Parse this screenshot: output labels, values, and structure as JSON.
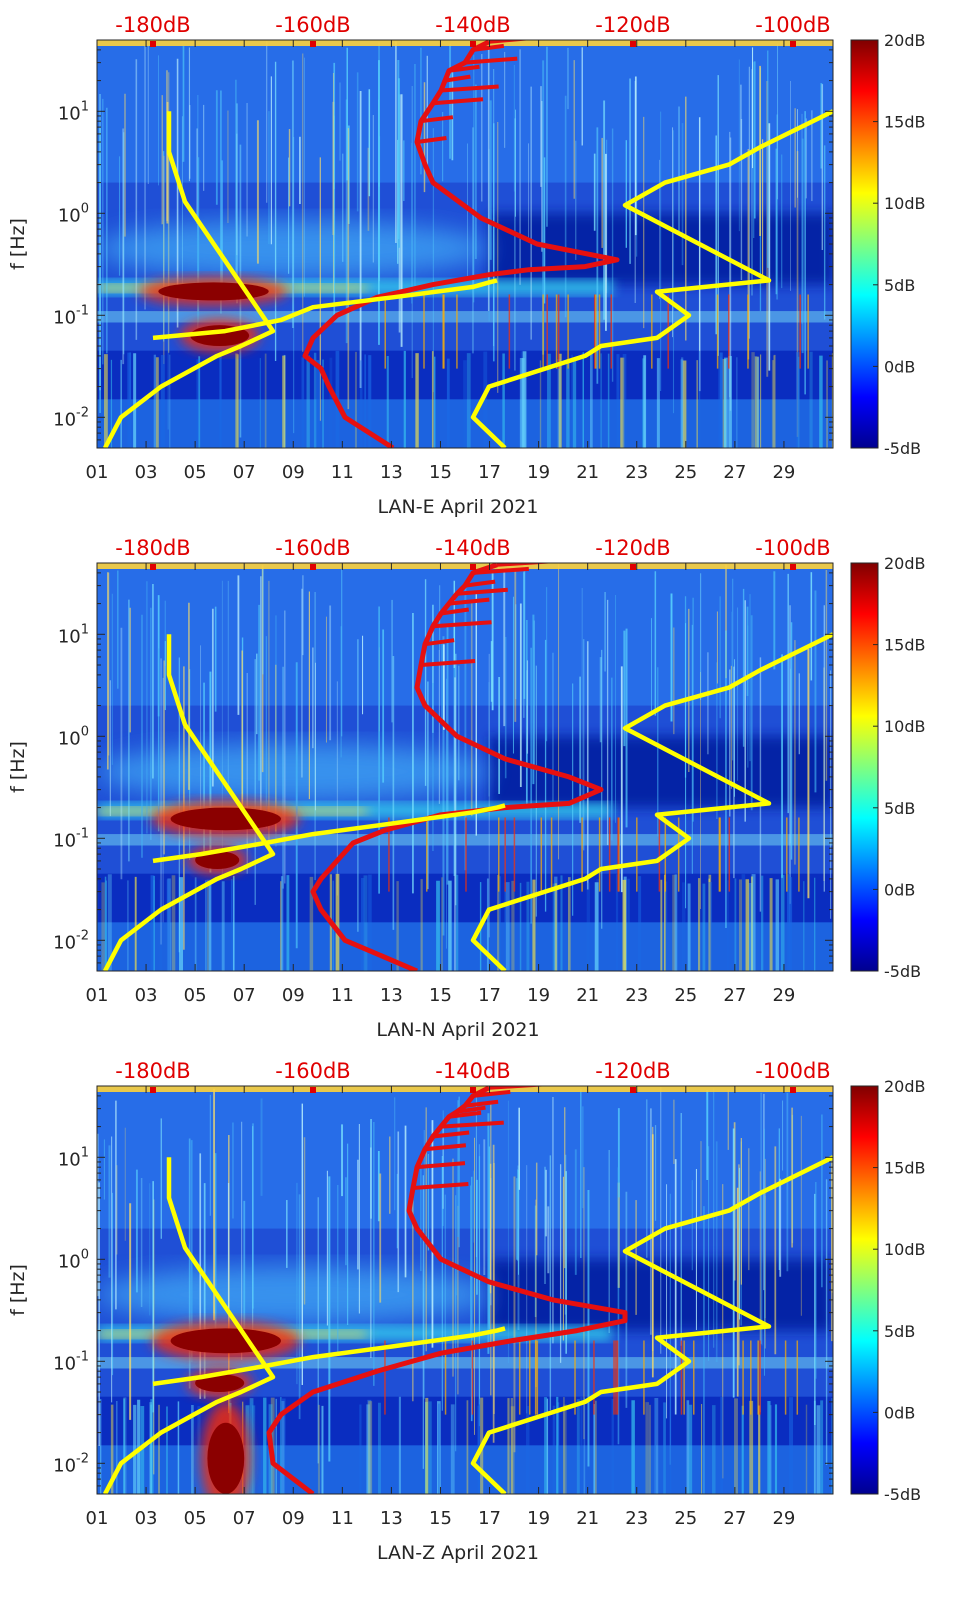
{
  "colors": {
    "spectro_base": "#1f4fd6",
    "spectro_low": "#001a9e",
    "hot": "#8b0000",
    "yellow_curve": "#ffff00",
    "red_curve": "#e61010",
    "top_label": "#e00000"
  },
  "chart_data": [
    {
      "type": "heatmap",
      "title": "",
      "xlabel": "LAN-E April 2021",
      "ylabel": "f [Hz]",
      "x_ticks": [
        "01",
        "03",
        "05",
        "07",
        "09",
        "11",
        "13",
        "15",
        "17",
        "19",
        "21",
        "23",
        "25",
        "27",
        "29"
      ],
      "x_range": [
        1,
        31
      ],
      "y_scale": "log",
      "y_range": [
        0.005,
        50
      ],
      "y_ticks": [
        {
          "value": 10,
          "label": "10^1"
        },
        {
          "value": 1,
          "label": "10^0"
        },
        {
          "value": 0.1,
          "label": "10^-1"
        },
        {
          "value": 0.01,
          "label": "10^-2"
        }
      ],
      "top_axis": {
        "labels": [
          "-180dB",
          "-160dB",
          "-140dB",
          "-120dB",
          "-100dB"
        ],
        "values": [
          -180,
          -160,
          -140,
          -120,
          -100
        ],
        "range": [
          -187,
          -95
        ]
      },
      "colorbar": {
        "labels": [
          "20dB",
          "15dB",
          "10dB",
          "5dB",
          "0dB",
          "-5dB"
        ],
        "range": [
          -5,
          20
        ]
      },
      "hot_spots": [
        {
          "x": [
            3.5,
            8.0
          ],
          "f": [
            0.14,
            0.21
          ]
        },
        {
          "x": [
            4.8,
            7.2
          ],
          "f": [
            0.05,
            0.08
          ]
        }
      ],
      "series": [
        {
          "name": "yellow-low-noise-model",
          "x_db": [
            -186.0,
            -184,
            -179,
            -172,
            -169,
            -165,
            -176,
            -178,
            -178
          ],
          "f": [
            0.005,
            0.01,
            0.02,
            0.04,
            0.05,
            0.07,
            1.3,
            4.0,
            10
          ]
        },
        {
          "name": "yellow-high-noise-model",
          "x_db": [
            -136.0,
            -140,
            -138,
            -126,
            -124,
            -117,
            -113,
            -117,
            -103,
            -121,
            -116,
            -108,
            -104,
            -95
          ],
          "f": [
            0.005,
            0.01,
            0.02,
            0.04,
            0.05,
            0.06,
            0.1,
            0.17,
            0.22,
            1.2,
            2.0,
            3.0,
            4.5,
            10
          ]
        },
        {
          "name": "red-psd-curve",
          "x_db": [
            -150,
            -156,
            -158,
            -159,
            -161,
            -160,
            -157,
            -152,
            -145,
            -138,
            -133,
            -126,
            -122,
            -132,
            -139,
            -145,
            -146,
            -147,
            -146.5,
            -145,
            -144,
            -143.5,
            -143,
            -141,
            -140,
            -138
          ],
          "f": [
            0.005,
            0.01,
            0.02,
            0.03,
            0.04,
            0.06,
            0.1,
            0.15,
            0.2,
            0.25,
            0.28,
            0.3,
            0.35,
            0.5,
            0.9,
            2.0,
            3.0,
            5.0,
            8.0,
            12.0,
            16.0,
            20.0,
            25.0,
            30.0,
            40.0,
            48.0
          ]
        },
        {
          "name": "yellow-mid-curve",
          "x_db": [
            -180.0,
            -171,
            -164,
            -160,
            -150,
            -140,
            -138,
            -137
          ],
          "f": [
            0.06,
            0.07,
            0.09,
            0.12,
            0.15,
            0.19,
            0.21,
            0.22
          ]
        }
      ]
    },
    {
      "type": "heatmap",
      "title": "",
      "xlabel": "LAN-N April 2021",
      "ylabel": "f [Hz]",
      "x_ticks": [
        "01",
        "03",
        "05",
        "07",
        "09",
        "11",
        "13",
        "15",
        "17",
        "19",
        "21",
        "23",
        "25",
        "27",
        "29"
      ],
      "x_range": [
        1,
        31
      ],
      "y_scale": "log",
      "y_range": [
        0.005,
        50
      ],
      "y_ticks": [
        {
          "value": 10,
          "label": "10^1"
        },
        {
          "value": 1,
          "label": "10^0"
        },
        {
          "value": 0.1,
          "label": "10^-1"
        },
        {
          "value": 0.01,
          "label": "10^-2"
        }
      ],
      "top_axis": {
        "labels": [
          "-180dB",
          "-160dB",
          "-140dB",
          "-120dB",
          "-100dB"
        ],
        "values": [
          -180,
          -160,
          -140,
          -120,
          -100
        ],
        "range": [
          -187,
          -95
        ]
      },
      "colorbar": {
        "labels": [
          "20dB",
          "15dB",
          "10dB",
          "5dB",
          "0dB",
          "-5dB"
        ],
        "range": [
          -5,
          20
        ]
      },
      "hot_spots": [
        {
          "x": [
            4.0,
            8.5
          ],
          "f": [
            0.12,
            0.2
          ]
        },
        {
          "x": [
            5.0,
            6.8
          ],
          "f": [
            0.05,
            0.075
          ]
        }
      ],
      "series": [
        {
          "name": "yellow-low-noise-model",
          "x_db": [
            -186.0,
            -184,
            -179,
            -172,
            -169,
            -165,
            -176,
            -178,
            -178
          ],
          "f": [
            0.005,
            0.01,
            0.02,
            0.04,
            0.05,
            0.07,
            1.3,
            4.0,
            10
          ]
        },
        {
          "name": "yellow-high-noise-model",
          "x_db": [
            -136.0,
            -140,
            -138,
            -126,
            -124,
            -117,
            -113,
            -117,
            -103,
            -121,
            -116,
            -108,
            -104,
            -95
          ],
          "f": [
            0.005,
            0.01,
            0.02,
            0.04,
            0.05,
            0.06,
            0.1,
            0.17,
            0.22,
            1.2,
            2.0,
            3.0,
            4.5,
            10
          ]
        },
        {
          "name": "red-psd-curve",
          "x_db": [
            -147,
            -156,
            -159,
            -160,
            -159,
            -157,
            -155,
            -151,
            -144,
            -136,
            -128,
            -124,
            -128,
            -136,
            -142,
            -146,
            -147,
            -146.5,
            -146,
            -145,
            -144,
            -143,
            -142,
            -141,
            -140,
            -137
          ],
          "f": [
            0.005,
            0.01,
            0.02,
            0.03,
            0.04,
            0.06,
            0.09,
            0.12,
            0.17,
            0.2,
            0.22,
            0.3,
            0.4,
            0.6,
            1.0,
            2.0,
            3.0,
            5.0,
            8.0,
            12.0,
            16.0,
            20.0,
            25.0,
            30.0,
            40.0,
            48.0
          ]
        },
        {
          "name": "yellow-mid-curve",
          "x_db": [
            -180.0,
            -174,
            -166,
            -160,
            -150,
            -140,
            -137,
            -136
          ],
          "f": [
            0.06,
            0.07,
            0.09,
            0.11,
            0.14,
            0.18,
            0.2,
            0.21
          ]
        }
      ]
    },
    {
      "type": "heatmap",
      "title": "",
      "xlabel": "LAN-Z April 2021",
      "ylabel": "f [Hz]",
      "x_ticks": [
        "01",
        "03",
        "05",
        "07",
        "09",
        "11",
        "13",
        "15",
        "17",
        "19",
        "21",
        "23",
        "25",
        "27",
        "29"
      ],
      "x_range": [
        1,
        31
      ],
      "y_scale": "log",
      "y_range": [
        0.005,
        50
      ],
      "y_ticks": [
        {
          "value": 10,
          "label": "10^1"
        },
        {
          "value": 1,
          "label": "10^0"
        },
        {
          "value": 0.1,
          "label": "10^-1"
        },
        {
          "value": 0.01,
          "label": "10^-2"
        }
      ],
      "top_axis": {
        "labels": [
          "-180dB",
          "-160dB",
          "-140dB",
          "-120dB",
          "-100dB"
        ],
        "values": [
          -180,
          -160,
          -140,
          -120,
          -100
        ],
        "range": [
          -187,
          -95
        ]
      },
      "colorbar": {
        "labels": [
          "20dB",
          "15dB",
          "10dB",
          "5dB",
          "0dB",
          "-5dB"
        ],
        "range": [
          -5,
          20
        ]
      },
      "hot_spots": [
        {
          "x": [
            4.0,
            8.5
          ],
          "f": [
            0.12,
            0.21
          ]
        },
        {
          "x": [
            5.0,
            7.0
          ],
          "f": [
            0.05,
            0.075
          ]
        },
        {
          "x": [
            5.5,
            7.0
          ],
          "f": [
            0.005,
            0.025
          ]
        }
      ],
      "series": [
        {
          "name": "yellow-low-noise-model",
          "x_db": [
            -186.0,
            -184,
            -179,
            -172,
            -169,
            -165,
            -176,
            -178,
            -178
          ],
          "f": [
            0.005,
            0.01,
            0.02,
            0.04,
            0.05,
            0.07,
            1.3,
            4.0,
            10
          ]
        },
        {
          "name": "yellow-high-noise-model",
          "x_db": [
            -136.0,
            -140,
            -138,
            -126,
            -124,
            -117,
            -113,
            -117,
            -103,
            -121,
            -116,
            -108,
            -104,
            -95
          ],
          "f": [
            0.005,
            0.01,
            0.02,
            0.04,
            0.05,
            0.06,
            0.1,
            0.17,
            0.22,
            1.2,
            2.0,
            3.0,
            4.5,
            10
          ]
        },
        {
          "name": "red-psd-curve",
          "x_db": [
            -160,
            -165,
            -165.5,
            -164,
            -160,
            -152,
            -144,
            -135,
            -127,
            -121,
            -121,
            -130,
            -138,
            -144,
            -147,
            -148,
            -147.5,
            -147,
            -146,
            -145,
            -144,
            -143,
            -142,
            -141,
            -140,
            -138
          ],
          "f": [
            0.005,
            0.01,
            0.02,
            0.03,
            0.05,
            0.08,
            0.12,
            0.16,
            0.2,
            0.25,
            0.3,
            0.4,
            0.6,
            1.0,
            2.0,
            3.0,
            5.0,
            8.0,
            12.0,
            16.0,
            20.0,
            25.0,
            28.0,
            32.0,
            40.0,
            48.0
          ]
        },
        {
          "name": "yellow-mid-curve",
          "x_db": [
            -180.0,
            -174,
            -166,
            -160,
            -150,
            -140,
            -137,
            -136
          ],
          "f": [
            0.06,
            0.07,
            0.09,
            0.11,
            0.14,
            0.18,
            0.2,
            0.21
          ]
        }
      ]
    }
  ]
}
